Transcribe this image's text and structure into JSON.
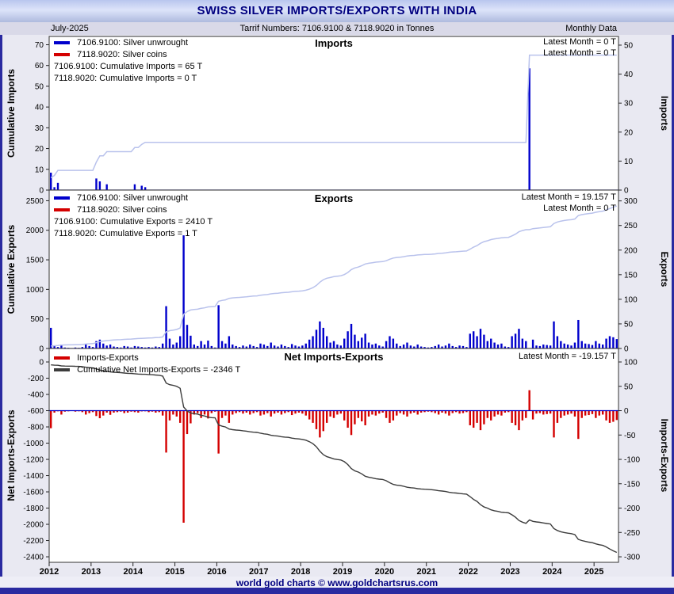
{
  "header": {
    "title": "SWISS SILVER IMPORTS/EXPORTS WITH INDIA",
    "date": "July-2025",
    "tariff": "Tarrif Numbers: 7106.9100 & 7118.9020 in Tonnes",
    "frequency": "Monthly Data"
  },
  "footer": {
    "text": "world gold charts © www.goldchartsrus.com"
  },
  "colors": {
    "unwrought": "#0000cc",
    "coins": "#d40000",
    "cumulative_line": "#b9c2ec",
    "net_line": "#3c3c3c",
    "zero_line": "#0000cc",
    "accent": "#000080"
  },
  "panels": {
    "imports": {
      "title": "Imports",
      "left_axis_label": "Cumulative Imports",
      "right_axis_label": "Imports",
      "legend": [
        "7106.9100: Silver unwrought",
        "7118.9020: Silver coins"
      ],
      "cumulative_labels": [
        "7106.9100: Cumulative Imports = 65 T",
        "7118.9020: Cumulative Imports = 0 T"
      ],
      "latest": [
        "Latest Month = 0 T",
        "Latest Month = 0 T"
      ],
      "left_ticks": [
        0,
        10,
        20,
        30,
        40,
        50,
        60,
        70
      ],
      "right_ticks": [
        0,
        10,
        20,
        30,
        40,
        50
      ],
      "left_range": [
        0,
        74
      ],
      "right_range": [
        0,
        53
      ]
    },
    "exports": {
      "title": "Exports",
      "left_axis_label": "Cumulative Exports",
      "right_axis_label": "Exports",
      "legend": [
        "7106.9100: Silver unwrought",
        "7118.9020: Silver coins"
      ],
      "cumulative_labels": [
        "7106.9100: Cumulative Exports = 2410 T",
        "7118.9020: Cumulative Exports = 1 T"
      ],
      "latest": [
        "Latest Month = 19.157 T",
        "Latest Month = 0 T"
      ],
      "left_ticks": [
        0,
        500,
        1000,
        1500,
        2000,
        2500
      ],
      "right_ticks": [
        0,
        50,
        100,
        150,
        200,
        250,
        300
      ],
      "left_range": [
        0,
        2680
      ],
      "right_range": [
        0,
        322
      ]
    },
    "net": {
      "title": "Net Imports-Exports",
      "left_axis_label": "Net Imports-Exports",
      "right_axis_label": "Imports-Exports",
      "legend": [
        "Imports-Exports",
        "Cumulative Net Imports-Exports = -2346 T"
      ],
      "latest": [
        "Latest Month = -19.157 T"
      ],
      "left_ticks": [
        0,
        -200,
        -400,
        -600,
        -800,
        -1000,
        -1200,
        -1400,
        -1600,
        -1800,
        -2000,
        -2200,
        -2400
      ],
      "right_ticks": [
        100,
        50,
        0,
        -50,
        -100,
        -150,
        -200,
        -250,
        -300
      ],
      "left_range": [
        -2468,
        166
      ],
      "right_range": [
        -311.33,
        127.67
      ]
    }
  },
  "chart_data": {
    "type": "bar",
    "subtype": "three stacked panels: monthly bars (right axes) with cumulative lines (left axes)",
    "units": "Tonnes",
    "x_start": "2012-01",
    "x_end": "2025-07",
    "months": 163,
    "year_labels": [
      2012,
      2013,
      2014,
      2015,
      2016,
      2017,
      2018,
      2019,
      2020,
      2021,
      2022,
      2023,
      2024,
      2025
    ],
    "legend_position": "top-left of each panel",
    "grid": false,
    "totals": {
      "cumulative_imports_unwrought": 65,
      "cumulative_imports_coins": 0,
      "cumulative_exports_unwrought": 2410,
      "cumulative_exports_coins": 1,
      "cumulative_net": -2346,
      "latest_month_exports": 19.157,
      "latest_month_imports": 0,
      "latest_month_net": -19.157
    },
    "series": [
      {
        "name": "imports_unwrought",
        "values": [
          6,
          1,
          2.5,
          0,
          0,
          0,
          0,
          0,
          0,
          0,
          0,
          0,
          0,
          4,
          3,
          0,
          2,
          0,
          0,
          0,
          0,
          0,
          0,
          0,
          2,
          0,
          1.5,
          1,
          0,
          0,
          0,
          0,
          0,
          0,
          0,
          0,
          0,
          0,
          0,
          0,
          0,
          0,
          0,
          0,
          0,
          0,
          0,
          0,
          0,
          0,
          0,
          0,
          0,
          0,
          0,
          0,
          0,
          0,
          0,
          0,
          0,
          0,
          0,
          0,
          0,
          0,
          0,
          0,
          0,
          0,
          0,
          0,
          0,
          0,
          0,
          0,
          0,
          0,
          0,
          0,
          0,
          0,
          0,
          0,
          0,
          0,
          0,
          0,
          0,
          0,
          0,
          0,
          0,
          0,
          0,
          0,
          0,
          0,
          0,
          0,
          0,
          0,
          0,
          0,
          0,
          0,
          0,
          0,
          0,
          0,
          0,
          0,
          0,
          0,
          0,
          0,
          0,
          0,
          0,
          0,
          0,
          0,
          0,
          0,
          0,
          0,
          0,
          0,
          0,
          0,
          0,
          0,
          0,
          0,
          0,
          0,
          0,
          42,
          0,
          0,
          0,
          0,
          0,
          0,
          0,
          0,
          0,
          0,
          0,
          0,
          0,
          0,
          0,
          0,
          0,
          0,
          0,
          0,
          0,
          0,
          0,
          0,
          0
        ]
      },
      {
        "name": "imports_coins",
        "values": [
          0,
          0,
          0,
          0,
          0,
          0,
          0,
          0,
          0,
          0,
          0,
          0,
          0,
          0,
          0,
          0,
          0,
          0,
          0,
          0,
          0,
          0,
          0,
          0,
          0,
          0,
          0,
          0,
          0,
          0,
          0,
          0,
          0,
          0,
          0,
          0,
          0,
          0,
          0,
          0,
          0,
          0,
          0,
          0,
          0,
          0,
          0,
          0,
          0,
          0,
          0,
          0,
          0,
          0,
          0,
          0,
          0,
          0,
          0,
          0,
          0,
          0,
          0,
          0,
          0,
          0,
          0,
          0,
          0,
          0,
          0,
          0,
          0,
          0,
          0,
          0,
          0,
          0,
          0,
          0,
          0,
          0,
          0,
          0,
          0,
          0,
          0,
          0,
          0,
          0,
          0,
          0,
          0,
          0,
          0,
          0,
          0,
          0,
          0,
          0,
          0,
          0,
          0,
          0,
          0,
          0,
          0,
          0,
          0,
          0,
          0,
          0,
          0,
          0,
          0,
          0,
          0,
          0,
          0,
          0,
          0,
          0,
          0,
          0,
          0,
          0,
          0,
          0,
          0,
          0,
          0,
          0,
          0,
          0,
          0,
          0,
          0,
          0,
          0,
          0,
          0,
          0,
          0,
          0,
          0,
          0,
          0,
          0,
          0,
          0,
          0,
          0,
          0,
          0,
          0,
          0,
          0,
          0,
          0,
          0,
          0,
          0,
          0
        ]
      },
      {
        "name": "exports_unwrought",
        "values": [
          42,
          5,
          3,
          8,
          2,
          1,
          0,
          2,
          1,
          3,
          8,
          5,
          3,
          15,
          18,
          10,
          6,
          8,
          4,
          3,
          2,
          5,
          4,
          2,
          5,
          4,
          3,
          2,
          3,
          2,
          4,
          3,
          10,
          86,
          20,
          8,
          12,
          25,
          230,
          48,
          26,
          8,
          5,
          15,
          8,
          16,
          5,
          2,
          88,
          15,
          10,
          25,
          8,
          5,
          3,
          6,
          4,
          8,
          5,
          3,
          10,
          8,
          5,
          12,
          6,
          4,
          8,
          5,
          3,
          9,
          6,
          4,
          6,
          10,
          18,
          25,
          38,
          55,
          42,
          25,
          12,
          15,
          8,
          6,
          20,
          35,
          50,
          28,
          15,
          22,
          30,
          12,
          8,
          10,
          6,
          4,
          15,
          25,
          20,
          10,
          5,
          8,
          12,
          6,
          4,
          8,
          4,
          3,
          2,
          3,
          5,
          8,
          4,
          6,
          10,
          5,
          3,
          6,
          5,
          3,
          30,
          35,
          25,
          40,
          28,
          15,
          20,
          12,
          8,
          10,
          4,
          3,
          25,
          30,
          40,
          20,
          15,
          0,
          18,
          6,
          5,
          8,
          7,
          6,
          55,
          25,
          15,
          10,
          8,
          6,
          12,
          58,
          15,
          10,
          9,
          7,
          15,
          10,
          8,
          20,
          25,
          22.843,
          19.157
        ]
      },
      {
        "name": "exports_coins",
        "values": [
          0,
          0,
          0,
          0,
          0,
          0,
          0,
          0,
          0,
          0,
          0,
          0,
          0,
          0,
          0.5,
          0,
          0,
          0.5,
          0,
          0,
          0,
          0,
          0,
          0,
          0,
          0,
          0,
          0,
          0,
          0,
          0,
          0,
          0,
          0,
          0,
          0,
          0,
          0,
          0,
          0,
          0,
          0,
          0,
          0,
          0,
          0,
          0,
          0,
          0,
          0,
          0,
          0,
          0,
          0,
          0,
          0,
          0,
          0,
          0,
          0,
          0,
          0,
          0,
          0,
          0,
          0,
          0,
          0,
          0,
          0,
          0,
          0,
          0,
          0,
          0,
          0,
          0,
          0,
          0,
          0,
          0,
          0,
          0,
          0,
          0,
          0,
          0,
          0,
          0,
          0,
          0,
          0,
          0,
          0,
          0,
          0,
          0,
          0,
          0,
          0,
          0,
          0,
          0,
          0,
          0,
          0,
          0,
          0,
          0,
          0,
          0,
          0,
          0,
          0,
          0,
          0,
          0,
          0,
          0,
          0,
          0,
          0,
          0,
          0,
          0,
          0,
          0,
          0,
          0,
          0,
          0,
          0,
          0,
          0,
          0,
          0,
          0,
          0,
          0,
          0,
          0,
          0,
          0,
          0,
          0,
          0,
          0,
          0,
          0,
          0,
          0,
          0,
          0,
          0,
          0,
          0,
          0,
          0,
          0,
          0,
          0,
          0,
          0
        ]
      }
    ]
  }
}
